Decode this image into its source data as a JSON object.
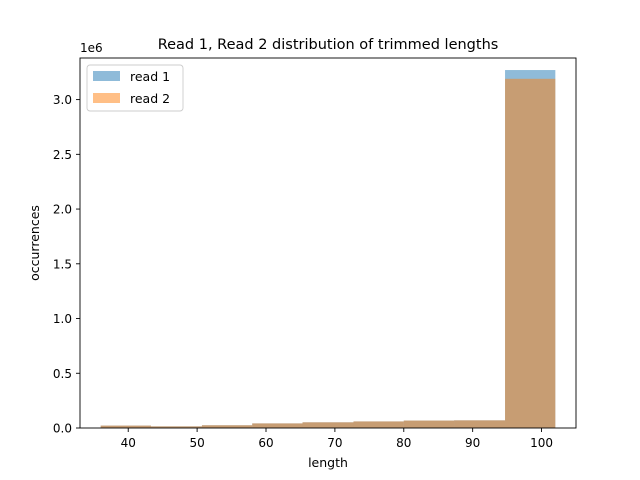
{
  "chart_data": {
    "type": "bar",
    "title": "Read 1, Read 2 distribution of trimmed lengths",
    "xlabel": "length",
    "ylabel": "occurrences",
    "y_offset_label": "1e6",
    "xlim": [
      33,
      105
    ],
    "ylim": [
      0,
      3.38
    ],
    "y_unit": "1e6",
    "xticks": [
      40,
      50,
      60,
      70,
      80,
      90,
      100
    ],
    "yticks": [
      0.0,
      0.5,
      1.0,
      1.5,
      2.0,
      2.5,
      3.0
    ],
    "grid": false,
    "legend_position": "top-left",
    "bin_edges": [
      36,
      43.3,
      50.7,
      58,
      65.3,
      72.7,
      80,
      87.3,
      94.7,
      102
    ],
    "series": [
      {
        "name": "read 1",
        "color": "#1f77b4",
        "opacity": 0.5,
        "values": [
          0.022,
          0.015,
          0.025,
          0.042,
          0.052,
          0.06,
          0.068,
          0.07,
          3.27
        ]
      },
      {
        "name": "read 2",
        "color": "#ff7f0e",
        "opacity": 0.5,
        "values": [
          0.022,
          0.015,
          0.025,
          0.042,
          0.052,
          0.06,
          0.068,
          0.07,
          3.19
        ]
      }
    ]
  }
}
